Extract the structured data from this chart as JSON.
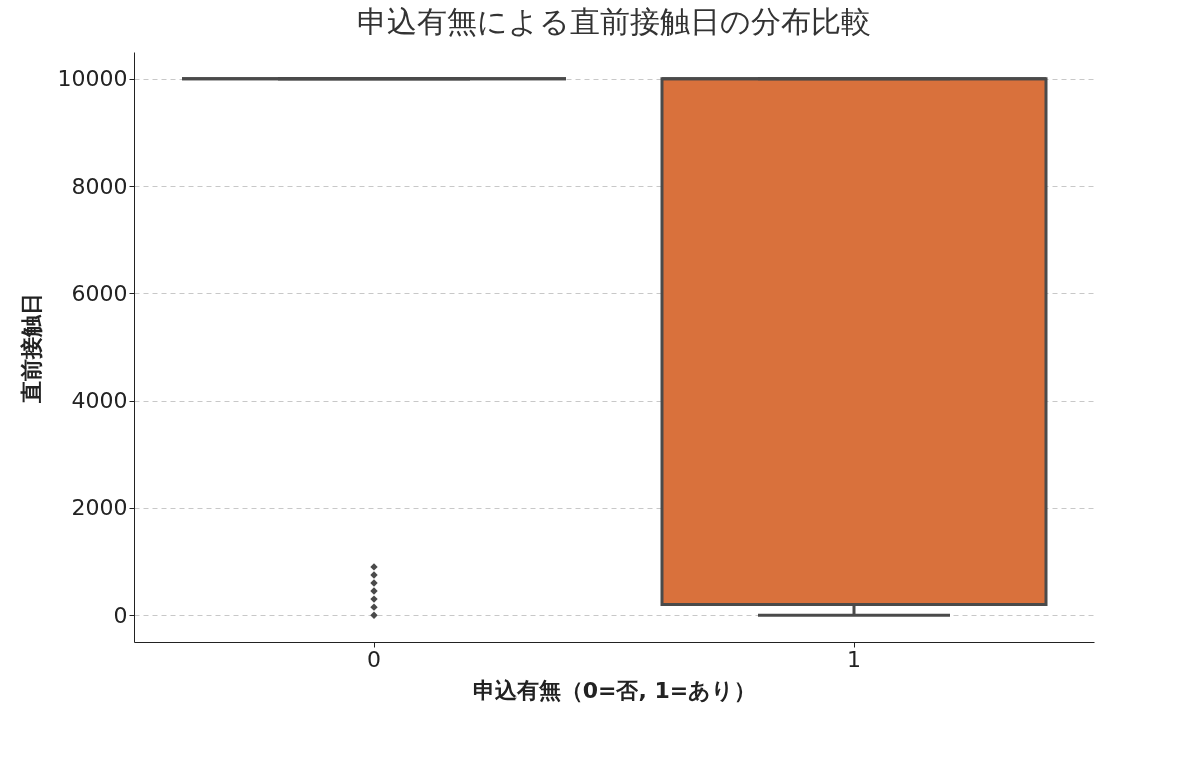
{
  "chart_data": {
    "type": "box",
    "title": "申込有無による直前接触日の分布比較",
    "xlabel": "申込有無（0=否, 1=あり）",
    "ylabel": "直前接触日",
    "categories": [
      "0",
      "1"
    ],
    "boxes": [
      {
        "low": 10000,
        "q1": 10000,
        "median": 10000,
        "q3": 10000,
        "high": 10000,
        "outliers": [
          0,
          150,
          300,
          450,
          600,
          750,
          900
        ]
      },
      {
        "low": 0,
        "q1": 200,
        "median": 10000,
        "q3": 10000,
        "high": 10000
      }
    ],
    "colors": [
      "#4a4a4a",
      "#d9713c"
    ],
    "ylim": [
      -500,
      10500
    ],
    "yticks": [
      0,
      2000,
      4000,
      6000,
      8000,
      10000
    ],
    "grid": "y",
    "marker": "diamond"
  }
}
